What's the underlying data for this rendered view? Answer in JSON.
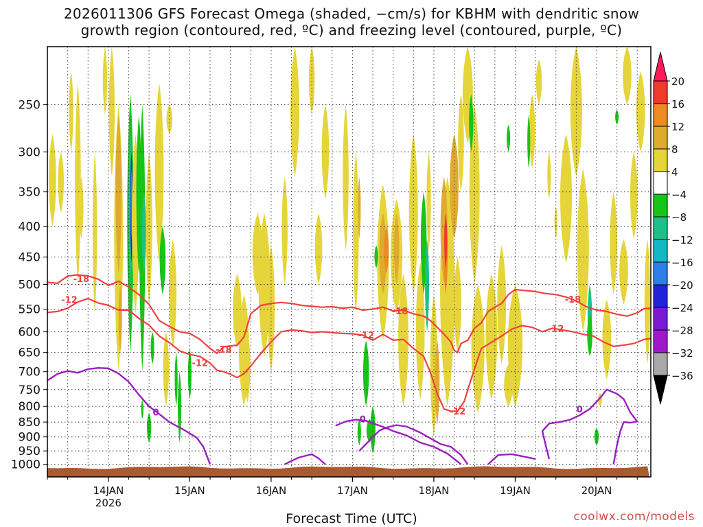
{
  "title_line1": "2026011306 GFS Forecast Omega (shaded, −cm/s) for KBHM with dendritic snow",
  "title_line2": "growth region (contoured, red, ºC) and freezing level (contoured, purple, ºC)",
  "credit": "coolwx.com/models",
  "chart_data": {
    "type": "heatmap",
    "xlabel": "Forecast Time (UTC)",
    "ylabel": "",
    "x_range_hours_from_13JAN06Z": [
      0,
      178
    ],
    "y_range_hPa": [
      1050,
      200
    ],
    "y_ticks": [
      250,
      300,
      350,
      400,
      450,
      500,
      550,
      600,
      650,
      700,
      750,
      800,
      850,
      900,
      950,
      1000
    ],
    "x_ticks": [
      {
        "label": "14JAN",
        "sublabel": "2026",
        "hour": 18
      },
      {
        "label": "15JAN",
        "sublabel": "",
        "hour": 42
      },
      {
        "label": "16JAN",
        "sublabel": "",
        "hour": 66
      },
      {
        "label": "17JAN",
        "sublabel": "",
        "hour": 90
      },
      {
        "label": "18JAN",
        "sublabel": "",
        "hour": 114
      },
      {
        "label": "19JAN",
        "sublabel": "",
        "hour": 138
      },
      {
        "label": "20JAN",
        "sublabel": "",
        "hour": 162
      }
    ],
    "colorbar": {
      "levels": [
        20,
        16,
        12,
        8,
        4,
        -4,
        -8,
        -12,
        -16,
        -20,
        -24,
        -28,
        -32,
        -36
      ],
      "colors": [
        "#ff1a5a",
        "#f03a2a",
        "#ee8a22",
        "#e0aa2e",
        "#e6d53a",
        "#ffffff",
        "#18c418",
        "#1fbf8a",
        "#14b7c8",
        "#2a7fe8",
        "#2222d8",
        "#7a1bd0",
        "#a018c8",
        "#a8a8a8",
        "#000000"
      ]
    },
    "series": [
      {
        "name": "-18 C (dendritic top)",
        "color": "#f04040",
        "label": "-18",
        "points": [
          [
            0,
            496
          ],
          [
            3,
            498
          ],
          [
            6,
            484
          ],
          [
            9,
            482
          ],
          [
            12,
            484
          ],
          [
            15,
            490
          ],
          [
            18,
            502
          ],
          [
            21,
            494
          ],
          [
            24,
            505
          ],
          [
            27,
            520
          ],
          [
            30,
            540
          ],
          [
            33,
            575
          ],
          [
            36,
            588
          ],
          [
            39,
            600
          ],
          [
            42,
            604
          ],
          [
            45,
            618
          ],
          [
            48,
            640
          ],
          [
            50,
            652
          ],
          [
            52,
            636
          ],
          [
            56,
            632
          ],
          [
            58,
            612
          ],
          [
            60,
            560
          ],
          [
            63,
            542
          ],
          [
            66,
            538
          ],
          [
            69,
            536
          ],
          [
            72,
            538
          ],
          [
            75,
            542
          ],
          [
            78,
            544
          ],
          [
            81,
            546
          ],
          [
            84,
            545
          ],
          [
            87,
            548
          ],
          [
            90,
            546
          ],
          [
            93,
            552
          ],
          [
            96,
            550
          ],
          [
            99,
            546
          ],
          [
            102,
            554
          ],
          [
            105,
            552
          ],
          [
            108,
            560
          ],
          [
            111,
            565
          ],
          [
            113,
            575
          ],
          [
            115,
            590
          ],
          [
            117,
            606
          ],
          [
            119,
            624
          ],
          [
            120,
            645
          ],
          [
            121,
            650
          ],
          [
            122,
            628
          ],
          [
            124,
            620
          ],
          [
            126,
            592
          ],
          [
            128,
            580
          ],
          [
            130,
            555
          ],
          [
            132,
            546
          ],
          [
            134,
            538
          ],
          [
            136,
            520
          ],
          [
            138,
            510
          ],
          [
            141,
            512
          ],
          [
            144,
            514
          ],
          [
            147,
            518
          ],
          [
            150,
            520
          ],
          [
            153,
            525
          ],
          [
            156,
            533
          ],
          [
            159,
            545
          ],
          [
            162,
            552
          ],
          [
            165,
            555
          ],
          [
            168,
            561
          ],
          [
            171,
            565
          ],
          [
            174,
            558
          ],
          [
            176,
            549
          ],
          [
            178,
            548
          ]
        ]
      },
      {
        "name": "-12 C (dendritic bottom)",
        "color": "#f04040",
        "label": "-12",
        "points": [
          [
            0,
            557
          ],
          [
            3,
            555
          ],
          [
            6,
            548
          ],
          [
            9,
            535
          ],
          [
            12,
            528
          ],
          [
            15,
            537
          ],
          [
            18,
            542
          ],
          [
            21,
            552
          ],
          [
            24,
            552
          ],
          [
            27,
            570
          ],
          [
            30,
            585
          ],
          [
            33,
            610
          ],
          [
            36,
            626
          ],
          [
            39,
            646
          ],
          [
            42,
            655
          ],
          [
            45,
            660
          ],
          [
            48,
            677
          ],
          [
            50,
            696
          ],
          [
            52,
            700
          ],
          [
            54,
            707
          ],
          [
            56,
            716
          ],
          [
            58,
            705
          ],
          [
            60,
            685
          ],
          [
            63,
            652
          ],
          [
            66,
            624
          ],
          [
            69,
            600
          ],
          [
            72,
            596
          ],
          [
            75,
            598
          ],
          [
            78,
            602
          ],
          [
            81,
            600
          ],
          [
            84,
            602
          ],
          [
            87,
            604
          ],
          [
            90,
            605
          ],
          [
            93,
            608
          ],
          [
            96,
            620
          ],
          [
            99,
            606
          ],
          [
            102,
            620
          ],
          [
            105,
            618
          ],
          [
            108,
            640
          ],
          [
            111,
            660
          ],
          [
            113,
            702
          ],
          [
            115,
            762
          ],
          [
            117,
            808
          ],
          [
            119,
            815
          ],
          [
            121,
            815
          ],
          [
            123,
            784
          ],
          [
            125,
            720
          ],
          [
            128,
            640
          ],
          [
            131,
            625
          ],
          [
            134,
            610
          ],
          [
            137,
            594
          ],
          [
            140,
            586
          ],
          [
            143,
            590
          ],
          [
            146,
            600
          ],
          [
            149,
            592
          ],
          [
            152,
            596
          ],
          [
            155,
            600
          ],
          [
            158,
            606
          ],
          [
            161,
            610
          ],
          [
            164,
            624
          ],
          [
            167,
            635
          ],
          [
            170,
            632
          ],
          [
            173,
            628
          ],
          [
            176,
            618
          ],
          [
            178,
            616
          ]
        ]
      }
    ],
    "freezing_level": [
      [
        [
          0,
          724
        ],
        [
          3,
          706
        ],
        [
          6,
          698
        ],
        [
          9,
          703
        ],
        [
          12,
          693
        ],
        [
          15,
          690
        ],
        [
          18,
          691
        ],
        [
          21,
          705
        ],
        [
          24,
          728
        ],
        [
          27,
          765
        ],
        [
          30,
          800
        ],
        [
          33,
          824
        ],
        [
          36,
          850
        ],
        [
          40,
          874
        ],
        [
          44,
          902
        ],
        [
          46,
          935
        ],
        [
          48,
          1000
        ]
      ],
      [
        [
          70,
          1000
        ],
        [
          74,
          975
        ],
        [
          78,
          962
        ],
        [
          80,
          978
        ],
        [
          82,
          1000
        ]
      ],
      [
        [
          85,
          862
        ],
        [
          88,
          848
        ],
        [
          91,
          842
        ],
        [
          94,
          846
        ],
        [
          97,
          858
        ],
        [
          100,
          870
        ],
        [
          102,
          880
        ],
        [
          106,
          895
        ],
        [
          110,
          920
        ],
        [
          114,
          935
        ],
        [
          118,
          960
        ],
        [
          122,
          1000
        ]
      ],
      [
        [
          92,
          950
        ],
        [
          94,
          925
        ],
        [
          96,
          900
        ],
        [
          98,
          878
        ],
        [
          100,
          868
        ],
        [
          103,
          860
        ],
        [
          106,
          865
        ],
        [
          110,
          885
        ],
        [
          113,
          905
        ],
        [
          116,
          925
        ],
        [
          119,
          935
        ],
        [
          122,
          965
        ],
        [
          124,
          1000
        ]
      ],
      [
        [
          130,
          1000
        ],
        [
          133,
          965
        ],
        [
          137,
          962
        ],
        [
          141,
          972
        ],
        [
          144,
          980
        ]
      ],
      [
        [
          148,
          980
        ],
        [
          147,
          930
        ],
        [
          146,
          880
        ],
        [
          148,
          855
        ],
        [
          151,
          850
        ],
        [
          154,
          843
        ],
        [
          157,
          828
        ],
        [
          160,
          808
        ],
        [
          163,
          775
        ],
        [
          165,
          750
        ],
        [
          168,
          762
        ],
        [
          170,
          778
        ],
        [
          172,
          820
        ],
        [
          174,
          848
        ],
        [
          172,
          852
        ],
        [
          170,
          850
        ],
        [
          169,
          880
        ],
        [
          168,
          930
        ],
        [
          167,
          1000
        ]
      ]
    ],
    "labels_text": {
      "minus18": "-18",
      "minus12": "-12",
      "zero": "0"
    }
  }
}
